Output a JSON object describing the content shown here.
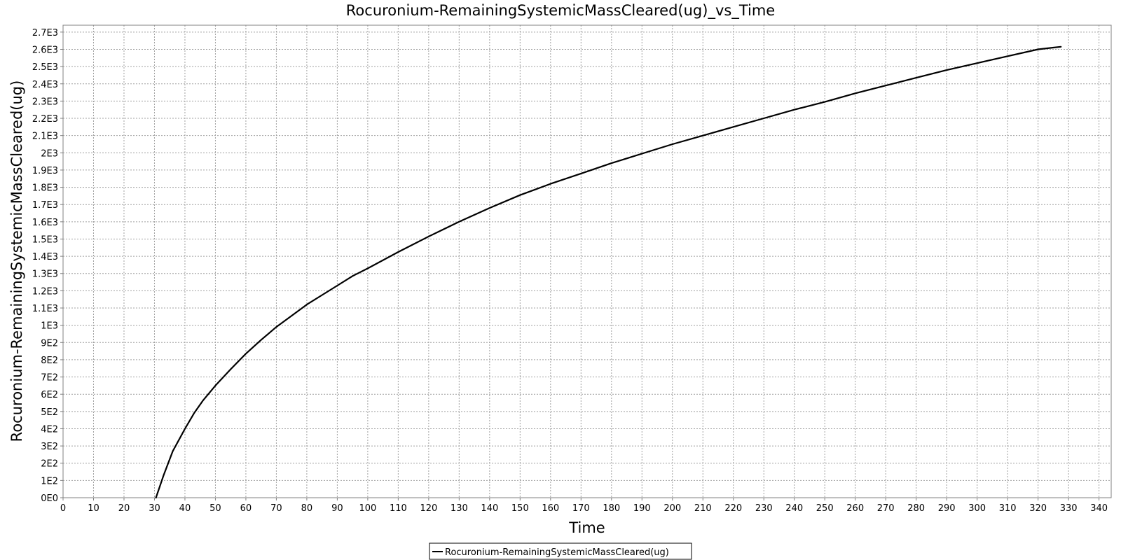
{
  "chart_data": {
    "type": "line",
    "title": "Rocuronium-RemainingSystemicMassCleared(ug)_vs_Time",
    "xlabel": "Time",
    "ylabel": "Rocuronium-RemainingSystemicMassCleared(ug)",
    "xlim": [
      0,
      344
    ],
    "ylim": [
      0,
      2740
    ],
    "x_ticks": [
      0,
      10,
      20,
      30,
      40,
      50,
      60,
      70,
      80,
      90,
      100,
      110,
      120,
      130,
      140,
      150,
      160,
      170,
      180,
      190,
      200,
      210,
      220,
      230,
      240,
      250,
      260,
      270,
      280,
      290,
      300,
      310,
      320,
      330,
      340
    ],
    "y_ticks": [
      {
        "value": 0,
        "label": "0E0"
      },
      {
        "value": 100,
        "label": "1E2"
      },
      {
        "value": 200,
        "label": "2E2"
      },
      {
        "value": 300,
        "label": "3E2"
      },
      {
        "value": 400,
        "label": "4E2"
      },
      {
        "value": 500,
        "label": "5E2"
      },
      {
        "value": 600,
        "label": "6E2"
      },
      {
        "value": 700,
        "label": "7E2"
      },
      {
        "value": 800,
        "label": "8E2"
      },
      {
        "value": 900,
        "label": "9E2"
      },
      {
        "value": 1000,
        "label": "1E3"
      },
      {
        "value": 1100,
        "label": "1.1E3"
      },
      {
        "value": 1200,
        "label": "1.2E3"
      },
      {
        "value": 1300,
        "label": "1.3E3"
      },
      {
        "value": 1400,
        "label": "1.4E3"
      },
      {
        "value": 1500,
        "label": "1.5E3"
      },
      {
        "value": 1600,
        "label": "1.6E3"
      },
      {
        "value": 1700,
        "label": "1.7E3"
      },
      {
        "value": 1800,
        "label": "1.8E3"
      },
      {
        "value": 1900,
        "label": "1.9E3"
      },
      {
        "value": 2000,
        "label": "2E3"
      },
      {
        "value": 2100,
        "label": "2.1E3"
      },
      {
        "value": 2200,
        "label": "2.2E3"
      },
      {
        "value": 2300,
        "label": "2.3E3"
      },
      {
        "value": 2400,
        "label": "2.4E3"
      },
      {
        "value": 2500,
        "label": "2.5E3"
      },
      {
        "value": 2600,
        "label": "2.6E3"
      },
      {
        "value": 2700,
        "label": "2.7E3"
      }
    ],
    "grid": true,
    "legend_position": "bottom-center",
    "series": [
      {
        "name": "Rocuronium-RemainingSystemicMassCleared(ug)",
        "color": "#000000",
        "x": [
          30.5,
          33,
          36,
          40,
          43,
          46,
          50,
          55,
          60,
          65,
          70,
          75,
          80,
          85,
          90,
          95,
          100,
          110,
          120,
          130,
          140,
          150,
          160,
          170,
          180,
          190,
          200,
          210,
          220,
          230,
          240,
          250,
          260,
          270,
          280,
          290,
          300,
          310,
          320,
          325,
          327.5
        ],
        "y": [
          0,
          130,
          270,
          400,
          490,
          565,
          650,
          745,
          835,
          915,
          990,
          1055,
          1120,
          1175,
          1230,
          1285,
          1330,
          1425,
          1515,
          1600,
          1680,
          1755,
          1820,
          1880,
          1940,
          1995,
          2050,
          2100,
          2150,
          2200,
          2250,
          2295,
          2345,
          2390,
          2435,
          2480,
          2520,
          2560,
          2600,
          2610,
          2615
        ]
      }
    ]
  }
}
